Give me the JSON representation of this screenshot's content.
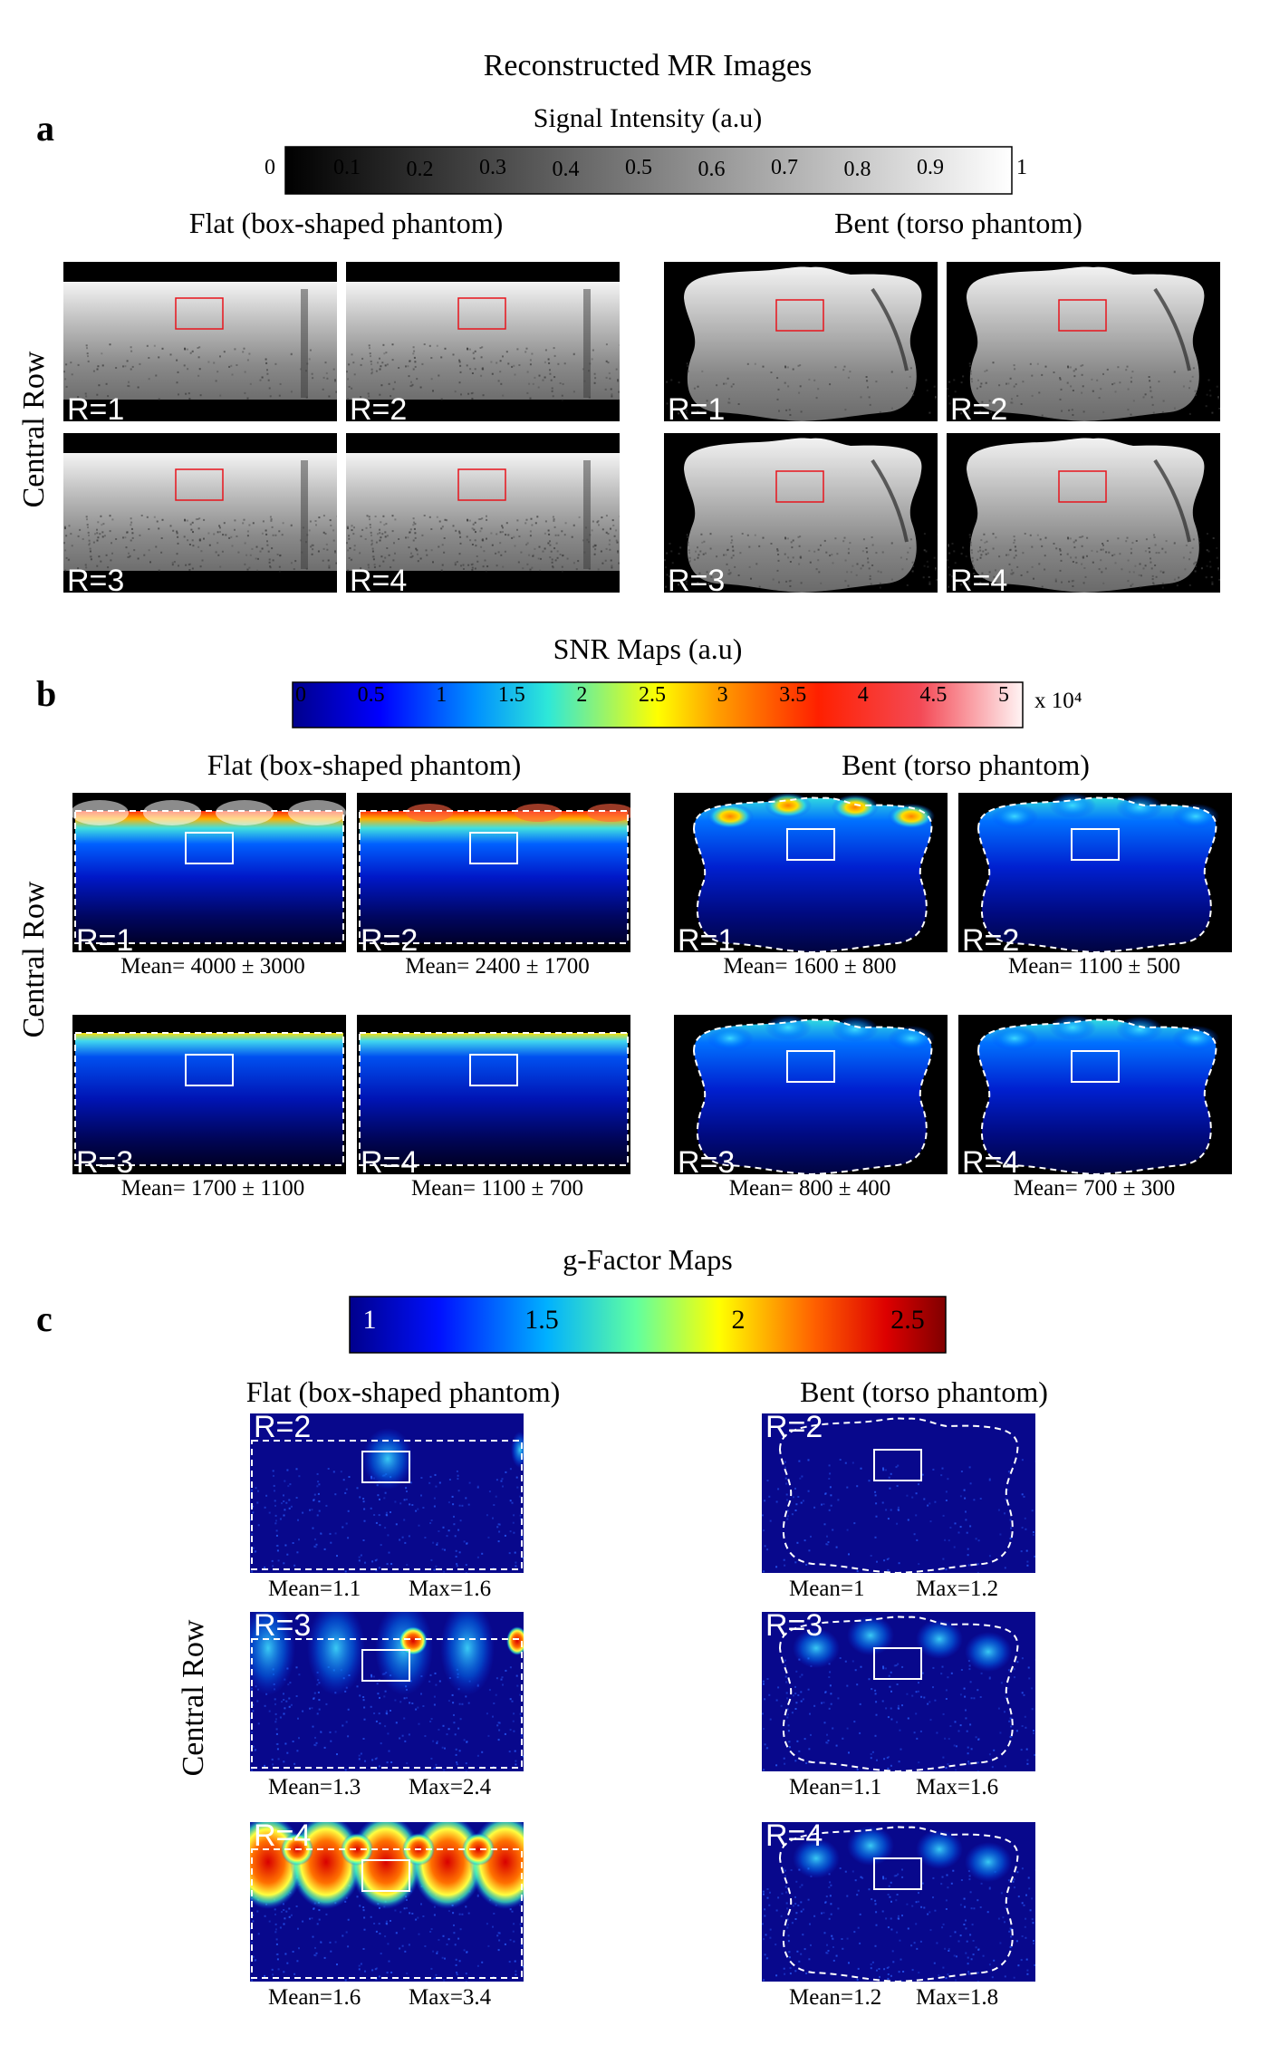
{
  "section_a": {
    "label": "a",
    "title": "Reconstructed MR Images",
    "colorbar_title": "Signal Intensity (a.u)",
    "colorbar_ticks": [
      "0",
      "0.1",
      "0.2",
      "0.3",
      "0.4",
      "0.5",
      "0.6",
      "0.7",
      "0.8",
      "0.9",
      "1"
    ],
    "flat_title": "Flat (box-shaped phantom)",
    "bent_title": "Bent (torso phantom)",
    "row_label": "Central Row",
    "panel_labels": [
      "R=1",
      "R=2",
      "R=3",
      "R=4"
    ]
  },
  "section_b": {
    "label": "b",
    "title": "SNR Maps (a.u)",
    "colorbar_ticks": [
      "0",
      "0.5",
      "1",
      "1.5",
      "2",
      "2.5",
      "3",
      "3.5",
      "4",
      "4.5",
      "5"
    ],
    "colorbar_unit": "x 10⁴",
    "flat_title": "Flat (box-shaped phantom)",
    "bent_title": "Bent (torso phantom)",
    "row_label": "Central Row",
    "panel_labels": [
      "R=1",
      "R=2",
      "R=3",
      "R=4"
    ],
    "flat_stats": [
      "Mean= 4000 ± 3000",
      "Mean= 2400 ± 1700",
      "Mean= 1700 ± 1100",
      "Mean= 1100 ± 700"
    ],
    "bent_stats": [
      "Mean= 1600 ± 800",
      "Mean= 1100 ± 500",
      "Mean= 800 ± 400",
      "Mean= 700 ± 300"
    ]
  },
  "section_c": {
    "label": "c",
    "title": "g-Factor Maps",
    "colorbar_ticks": [
      "1",
      "1.5",
      "2",
      "2.5"
    ],
    "flat_title": "Flat (box-shaped phantom)",
    "bent_title": "Bent (torso phantom)",
    "row_label": "Central Row",
    "panel_labels": [
      "R=2",
      "R=3",
      "R=4"
    ],
    "flat_mean": [
      "Mean=1.1",
      "Mean=1.3",
      "Mean=1.6"
    ],
    "flat_max": [
      "Max=1.6",
      "Max=2.4",
      "Max=3.4"
    ],
    "bent_mean": [
      "Mean=1",
      "Mean=1.1",
      "Mean=1.2"
    ],
    "bent_max": [
      "Max=1.2",
      "Max=1.6",
      "Max=1.8"
    ]
  },
  "colors": {
    "roi_red": "#e8141c",
    "roi_white": "#ffffff",
    "map_blue": "#08088c"
  }
}
